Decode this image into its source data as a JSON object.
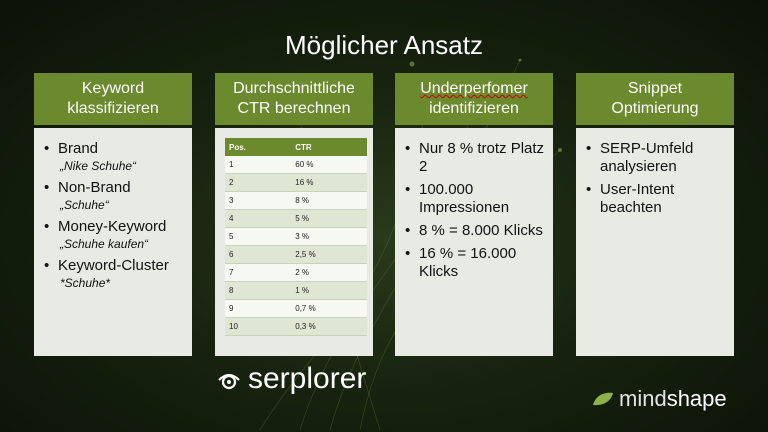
{
  "title": "Möglicher Ansatz",
  "columns": [
    {
      "head": [
        "Keyword",
        "klassifizieren"
      ],
      "items": [
        {
          "text": "Brand",
          "sub": "„Nike Schuhe“"
        },
        {
          "text": "Non-Brand",
          "sub": "„Schuhe“"
        },
        {
          "text": "Money-Keyword",
          "sub": "„Schuhe kaufen“"
        },
        {
          "text": "Keyword-Cluster",
          "sub": "*Schuhe*"
        }
      ]
    },
    {
      "head": [
        "Durchschnittliche",
        "CTR berechnen"
      ],
      "table": {
        "headers": [
          "Pos.",
          "CTR"
        ],
        "rows": [
          [
            "1",
            "60 %"
          ],
          [
            "2",
            "16 %"
          ],
          [
            "3",
            "8 %"
          ],
          [
            "4",
            "5 %"
          ],
          [
            "5",
            "3 %"
          ],
          [
            "6",
            "2,5 %"
          ],
          [
            "7",
            "2 %"
          ],
          [
            "8",
            "1 %"
          ],
          [
            "9",
            "0,7 %"
          ],
          [
            "10",
            "0,3 %"
          ]
        ]
      }
    },
    {
      "head": [
        "Underperfomer",
        "identifizieren"
      ],
      "items": [
        {
          "text": "Nur 8 % trotz Platz 2"
        },
        {
          "text": "100.000 Impressionen"
        },
        {
          "text": "8 % = 8.000 Klicks"
        },
        {
          "text": "16 % = 16.000 Klicks"
        }
      ]
    },
    {
      "head": [
        "Snippet",
        "Optimierung"
      ],
      "items": [
        {
          "text": "SERP-Umfeld analysieren"
        },
        {
          "text": "User-Intent beachten"
        }
      ]
    }
  ],
  "logos": {
    "serplorer": "serplorer",
    "mindshape_a": "mind",
    "mindshape_b": "shape"
  },
  "icons": {
    "serplorer": "eye-icon",
    "mindshape": "leaf-icon"
  },
  "colors": {
    "accent": "#6b8a2e",
    "panel": "#e8ebe4",
    "background": "#17230f"
  }
}
